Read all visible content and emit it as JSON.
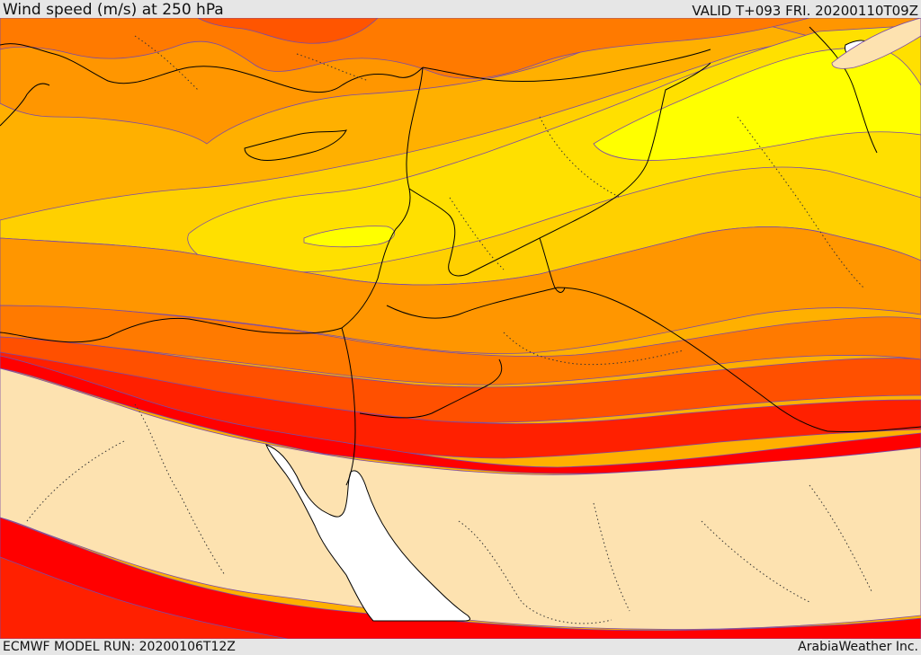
{
  "header": {
    "title": "Wind speed (m/s) at 250 hPa",
    "valid": "VALID T+093 FRI. 20200110T09Z"
  },
  "footer": {
    "model_run": "ECMWF MODEL RUN: 20200106T12Z",
    "credit": "ArabiaWeather Inc."
  },
  "map": {
    "field": "wind-speed-shading",
    "band_colors": [
      "#fde2b0",
      "#ff0000",
      "#ff2000",
      "#ff5000",
      "#ff7a00",
      "#ff9600",
      "#ffb000",
      "#ffd000",
      "#ffe000",
      "#ffff00"
    ],
    "land_color": "#fde2b0",
    "sea_color": "#ffffff",
    "contour_color": "#7a4aa8",
    "border_color": "#000000"
  }
}
